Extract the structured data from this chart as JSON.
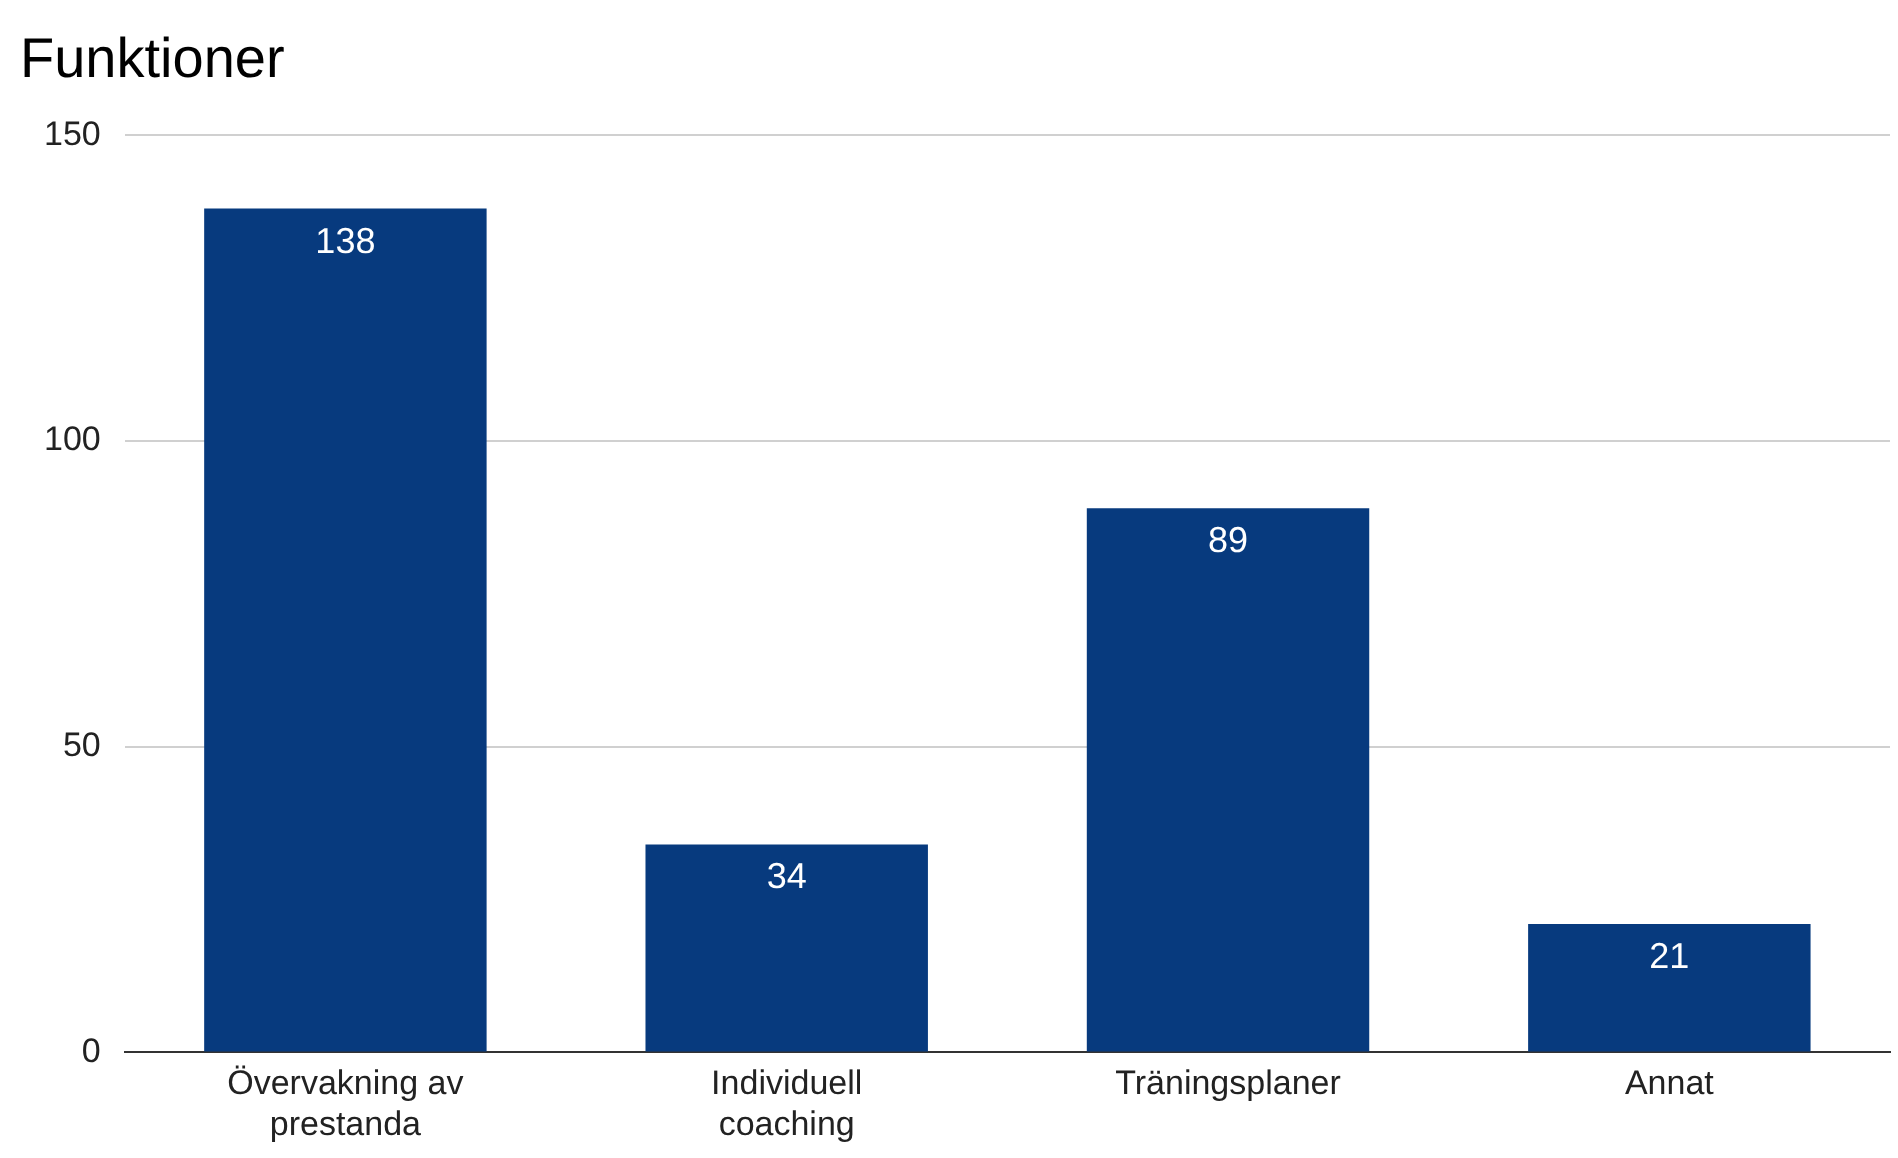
{
  "chart_data": {
    "type": "bar",
    "title": "Funktioner",
    "categories": [
      "Övervakning av prestanda",
      "Individuell coaching",
      "Träningsplaner",
      "Annat"
    ],
    "values": [
      138,
      34,
      89,
      21
    ],
    "color": "#073a7e",
    "ylim": [
      0,
      150
    ],
    "yticks": [
      0,
      50,
      100,
      150
    ],
    "grid": "y",
    "legend": false,
    "data_labels": true
  }
}
